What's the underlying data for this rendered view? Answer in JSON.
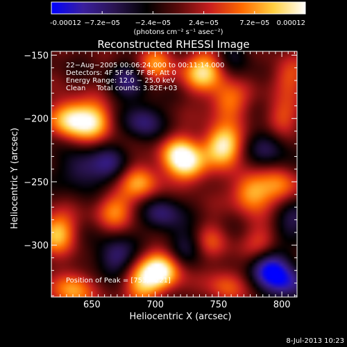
{
  "colorbar": {
    "min": -0.00012,
    "max": 0.00012,
    "ticks": [
      "-0.00012",
      "−7.2e−05",
      "−2.4e−05",
      "2.4e−05",
      "7.2e−05",
      "0.00012"
    ],
    "unit_label": "(photons cm⁻² s⁻¹ asec⁻²)",
    "colors": [
      "#0000ff",
      "#3a1f9e",
      "#2a1450",
      "#000000",
      "#5a0a0a",
      "#c81e1e",
      "#ff6a00",
      "#ffd040",
      "#ffffff"
    ]
  },
  "chart_data": {
    "type": "heatmap",
    "title": "Reconstructed RHESSI Image",
    "xlabel": "Heliocentric X (arcsec)",
    "ylabel": "Heliocentric Y (arcsec)",
    "xlim": [
      618,
      812
    ],
    "ylim": [
      -341,
      -147
    ],
    "xticks": [
      650,
      700,
      750,
      800
    ],
    "yticks": [
      -150,
      -200,
      -250,
      -300
    ],
    "xtick_labels": [
      "650",
      "700",
      "750",
      "800"
    ],
    "ytick_labels": [
      "−150",
      "−200",
      "−250",
      "−300"
    ],
    "annotations": [
      "22−Aug−2005 00:06:24.000 to 00:11:14.000",
      "Detectors: 4F 5F 6F 7F 8F, Att 0",
      "Energy Range: 12.0 − 25.0 keV",
      "Clean     Total counts: 3.82E+03"
    ],
    "peak_label": "Position of Peak = [753,−221]",
    "peak": [
      753,
      -221
    ],
    "blobs": [
      {
        "x": 753,
        "y": -221,
        "v": 1.0
      },
      {
        "x": 632,
        "y": -200,
        "v": 0.9
      },
      {
        "x": 652,
        "y": -202,
        "v": 0.8
      },
      {
        "x": 705,
        "y": -320,
        "v": 1.0
      },
      {
        "x": 688,
        "y": -330,
        "v": 0.7
      },
      {
        "x": 622,
        "y": -290,
        "v": 0.8
      },
      {
        "x": 635,
        "y": -335,
        "v": 0.7
      },
      {
        "x": 700,
        "y": -157,
        "v": 0.6
      },
      {
        "x": 735,
        "y": -165,
        "v": 0.55
      },
      {
        "x": 745,
        "y": -158,
        "v": 0.45
      },
      {
        "x": 757,
        "y": -187,
        "v": 0.6
      },
      {
        "x": 718,
        "y": -228,
        "v": 0.75
      },
      {
        "x": 728,
        "y": -238,
        "v": 0.65
      },
      {
        "x": 688,
        "y": -250,
        "v": 0.7
      },
      {
        "x": 668,
        "y": -272,
        "v": 0.55
      },
      {
        "x": 775,
        "y": -258,
        "v": 0.75
      },
      {
        "x": 800,
        "y": -255,
        "v": 0.55
      },
      {
        "x": 800,
        "y": -200,
        "v": 0.45
      },
      {
        "x": 805,
        "y": -167,
        "v": 0.45
      },
      {
        "x": 742,
        "y": -297,
        "v": 0.5
      },
      {
        "x": 785,
        "y": -298,
        "v": 0.45
      },
      {
        "x": 755,
        "y": -332,
        "v": 0.45
      },
      {
        "x": 690,
        "y": -202,
        "v": -0.55
      },
      {
        "x": 665,
        "y": -237,
        "v": -0.5
      },
      {
        "x": 640,
        "y": -240,
        "v": -0.5
      },
      {
        "x": 705,
        "y": -275,
        "v": -0.55
      },
      {
        "x": 728,
        "y": -300,
        "v": -0.5
      },
      {
        "x": 790,
        "y": -318,
        "v": -0.85
      },
      {
        "x": 805,
        "y": -330,
        "v": -0.6
      },
      {
        "x": 790,
        "y": -222,
        "v": -0.45
      },
      {
        "x": 680,
        "y": -170,
        "v": -0.5
      },
      {
        "x": 760,
        "y": -150,
        "v": -0.35
      },
      {
        "x": 810,
        "y": -280,
        "v": -0.5
      },
      {
        "x": 668,
        "y": -310,
        "v": -0.6
      }
    ]
  },
  "footer_date": "8-Jul-2013 10:23"
}
